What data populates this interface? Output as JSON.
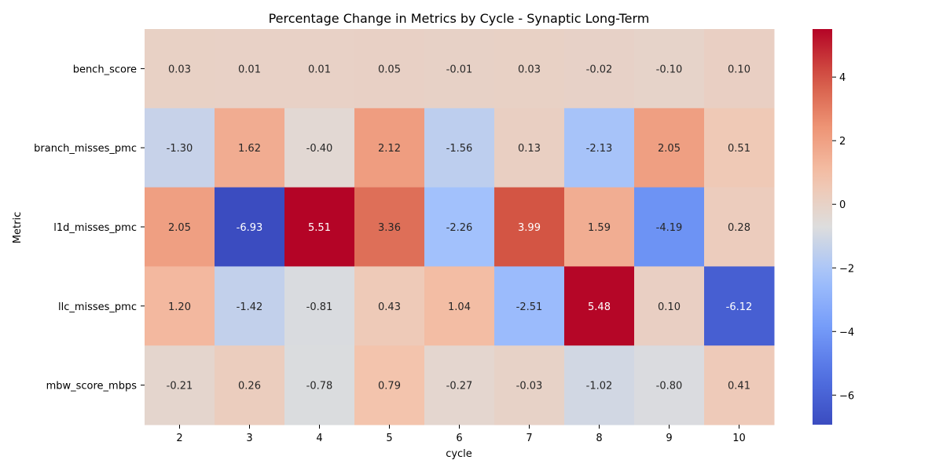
{
  "chart_data": {
    "type": "heatmap",
    "title": "Percentage Change in Metrics by Cycle - Synaptic Long-Term",
    "xlabel": "cycle",
    "ylabel": "Metric",
    "x": [
      "2",
      "3",
      "4",
      "5",
      "6",
      "7",
      "8",
      "9",
      "10"
    ],
    "y": [
      "bench_score",
      "branch_misses_pmc",
      "l1d_misses_pmc",
      "llc_misses_pmc",
      "mbw_score_mbps"
    ],
    "values": [
      [
        0.03,
        0.01,
        0.01,
        0.05,
        -0.01,
        0.03,
        -0.02,
        -0.1,
        0.1
      ],
      [
        -1.3,
        1.62,
        -0.4,
        2.12,
        -1.56,
        0.13,
        -2.13,
        2.05,
        0.51
      ],
      [
        2.05,
        -6.93,
        5.51,
        3.36,
        -2.26,
        3.99,
        1.59,
        -4.19,
        0.28
      ],
      [
        1.2,
        -1.42,
        -0.81,
        0.43,
        1.04,
        -2.51,
        5.48,
        0.1,
        -6.12
      ],
      [
        -0.21,
        0.26,
        -0.78,
        0.79,
        -0.27,
        -0.03,
        -1.02,
        -0.8,
        0.41
      ]
    ],
    "cell_labels": [
      [
        "0.03",
        "0.01",
        "0.01",
        "0.05",
        "-0.01",
        "0.03",
        "-0.02",
        "-0.10",
        "0.10"
      ],
      [
        "-1.30",
        "1.62",
        "-0.40",
        "2.12",
        "-1.56",
        "0.13",
        "-2.13",
        "2.05",
        "0.51"
      ],
      [
        "2.05",
        "-6.93",
        "5.51",
        "3.36",
        "-2.26",
        "3.99",
        "1.59",
        "-4.19",
        "0.28"
      ],
      [
        "1.20",
        "-1.42",
        "-0.81",
        "0.43",
        "1.04",
        "-2.51",
        "5.48",
        "0.10",
        "-6.12"
      ],
      [
        "-0.21",
        "0.26",
        "-0.78",
        "0.79",
        "-0.27",
        "-0.03",
        "-1.02",
        "-0.80",
        "0.41"
      ]
    ],
    "colorbar": {
      "range": [
        -6.93,
        5.51
      ],
      "ticks": [
        -6,
        -4,
        -2,
        0,
        2,
        4
      ],
      "tick_labels": [
        "−6",
        "−4",
        "−2",
        "0",
        "2",
        "4"
      ],
      "colormap": "coolwarm",
      "low_color": "#3b4cc0",
      "mid_color": "#dddddd",
      "high_color": "#b40426"
    },
    "annotate": true,
    "grid": false
  }
}
